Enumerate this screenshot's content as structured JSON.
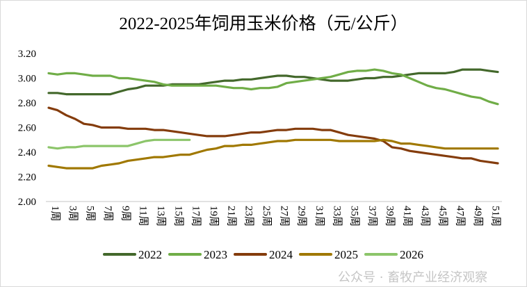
{
  "chart_data": {
    "type": "line",
    "title": "2022-2025年饲用玉米价格（元/公斤）",
    "xlabel": "",
    "ylabel": "",
    "ylim": [
      2.0,
      3.2
    ],
    "yticks": [
      "2.00",
      "2.20",
      "2.40",
      "2.60",
      "2.80",
      "3.00",
      "3.20"
    ],
    "x_tick_labels": [
      "1周",
      "3周",
      "5周",
      "7周",
      "9周",
      "11周",
      "13周",
      "15周",
      "17周",
      "19周",
      "21周",
      "23周",
      "25周",
      "27周",
      "29周",
      "31周",
      "33周",
      "35周",
      "37周",
      "39周",
      "41周",
      "43周",
      "45周",
      "47周",
      "49周",
      "51周"
    ],
    "grid": false,
    "legend": "bottom",
    "series": [
      {
        "name": "2022",
        "color": "#43682b",
        "values": [
          2.88,
          2.88,
          2.87,
          2.87,
          2.87,
          2.87,
          2.87,
          2.87,
          2.89,
          2.91,
          2.92,
          2.94,
          2.94,
          2.94,
          2.95,
          2.95,
          2.95,
          2.95,
          2.96,
          2.97,
          2.98,
          2.98,
          2.99,
          2.99,
          3.0,
          3.01,
          3.02,
          3.02,
          3.01,
          3.01,
          3.0,
          2.99,
          2.98,
          2.98,
          2.98,
          2.99,
          3.0,
          3.0,
          3.01,
          3.01,
          3.02,
          3.03,
          3.04,
          3.04,
          3.04,
          3.04,
          3.05,
          3.07,
          3.07,
          3.07,
          3.06,
          3.05
        ]
      },
      {
        "name": "2023",
        "color": "#70ad47",
        "values": [
          3.04,
          3.03,
          3.04,
          3.04,
          3.03,
          3.02,
          3.02,
          3.02,
          3.0,
          3.0,
          2.99,
          2.98,
          2.97,
          2.95,
          2.94,
          2.94,
          2.94,
          2.94,
          2.94,
          2.94,
          2.93,
          2.92,
          2.92,
          2.91,
          2.92,
          2.92,
          2.93,
          2.96,
          2.97,
          2.98,
          2.99,
          3.0,
          3.01,
          3.03,
          3.05,
          3.06,
          3.06,
          3.07,
          3.06,
          3.04,
          3.03,
          3.0,
          2.97,
          2.94,
          2.92,
          2.91,
          2.89,
          2.87,
          2.85,
          2.84,
          2.81,
          2.79
        ]
      },
      {
        "name": "2024",
        "color": "#843c0c",
        "values": [
          2.76,
          2.74,
          2.7,
          2.67,
          2.63,
          2.62,
          2.6,
          2.6,
          2.6,
          2.59,
          2.59,
          2.59,
          2.58,
          2.58,
          2.57,
          2.56,
          2.55,
          2.54,
          2.53,
          2.53,
          2.53,
          2.54,
          2.55,
          2.56,
          2.56,
          2.57,
          2.58,
          2.58,
          2.59,
          2.59,
          2.59,
          2.58,
          2.58,
          2.56,
          2.54,
          2.53,
          2.52,
          2.51,
          2.49,
          2.44,
          2.43,
          2.41,
          2.4,
          2.39,
          2.38,
          2.37,
          2.36,
          2.35,
          2.35,
          2.33,
          2.32,
          2.31
        ]
      },
      {
        "name": "2025",
        "color": "#a07800",
        "values": [
          2.29,
          2.28,
          2.27,
          2.27,
          2.27,
          2.27,
          2.29,
          2.3,
          2.31,
          2.33,
          2.34,
          2.35,
          2.36,
          2.36,
          2.37,
          2.38,
          2.38,
          2.4,
          2.42,
          2.43,
          2.45,
          2.45,
          2.46,
          2.46,
          2.47,
          2.48,
          2.49,
          2.49,
          2.5,
          2.5,
          2.5,
          2.5,
          2.5,
          2.49,
          2.49,
          2.49,
          2.49,
          2.49,
          2.5,
          2.49,
          2.47,
          2.47,
          2.46,
          2.45,
          2.44,
          2.43,
          2.43,
          2.43,
          2.43,
          2.43,
          2.43,
          2.43
        ]
      },
      {
        "name": "2026",
        "color": "#8cc56a",
        "values": [
          2.44,
          2.43,
          2.44,
          2.44,
          2.45,
          2.45,
          2.45,
          2.45,
          2.45,
          2.45,
          2.47,
          2.49,
          2.5,
          2.5,
          2.5,
          2.5,
          2.5
        ]
      }
    ]
  },
  "watermark": "公众号 · 畜牧产业经济观察"
}
